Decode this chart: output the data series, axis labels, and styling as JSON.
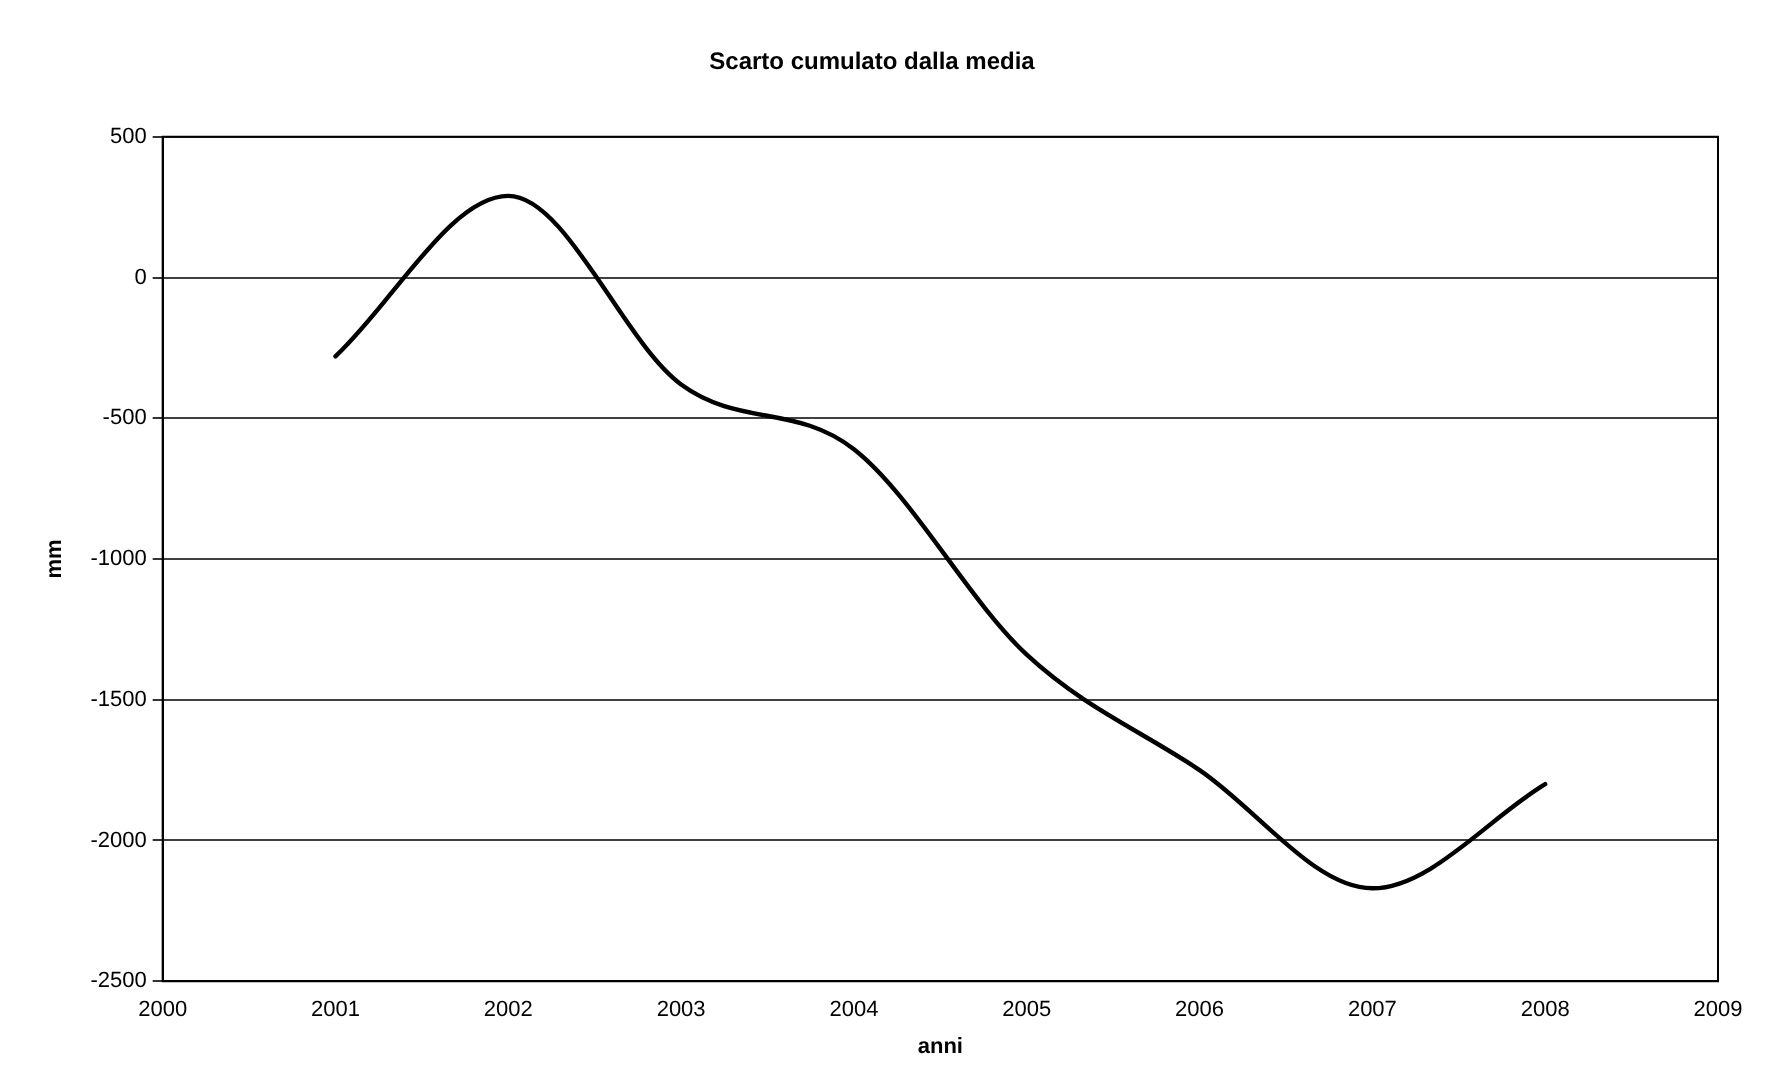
{
  "chart_data": {
    "type": "line",
    "title": "Scarto cumulato dalla media",
    "xlabel": "anni",
    "ylabel": "mm",
    "x": [
      2001,
      2002,
      2003,
      2004,
      2005,
      2006,
      2007,
      2008
    ],
    "series": [
      {
        "color": "#000000",
        "values": [
          -280,
          290,
          -380,
          -610,
          -1340,
          -1750,
          -2170,
          -1800
        ]
      }
    ],
    "xlim": [
      2000,
      2009
    ],
    "xticks": [
      2000,
      2001,
      2002,
      2003,
      2004,
      2005,
      2006,
      2007,
      2008,
      2009
    ],
    "ylim": [
      -2500,
      500
    ],
    "yticks": [
      -2500,
      -2000,
      -1500,
      -1000,
      -500,
      0,
      500
    ],
    "grid": "y",
    "legend": false,
    "marker": "none",
    "line_style": "solid"
  }
}
